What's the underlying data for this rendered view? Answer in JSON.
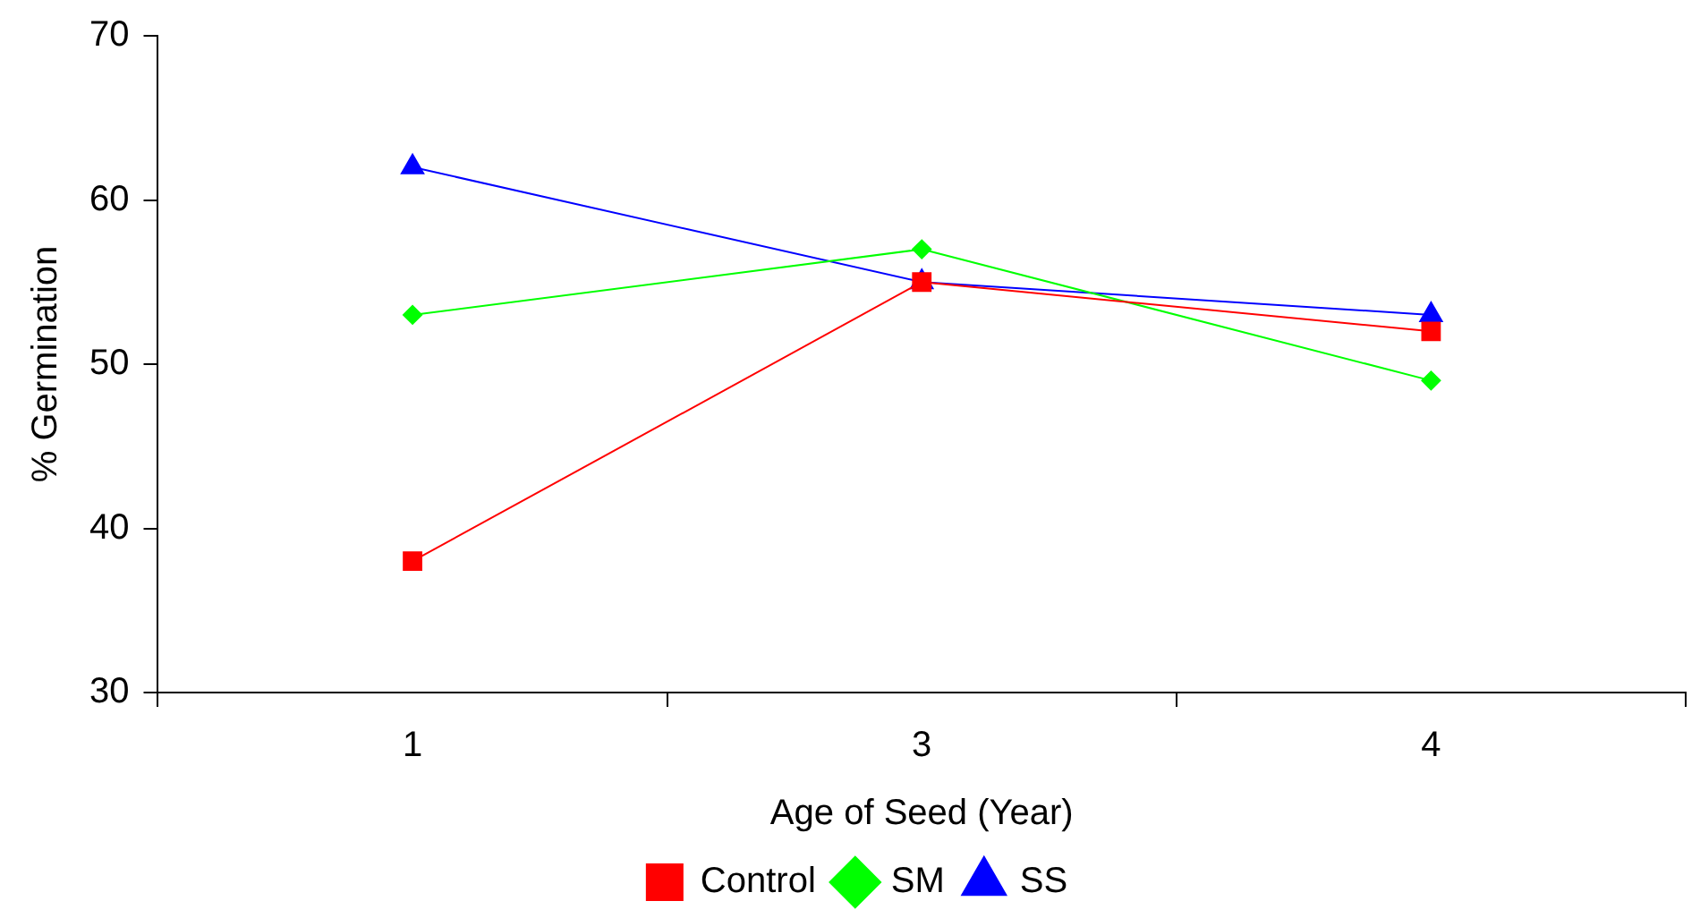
{
  "chart_data": {
    "type": "line",
    "xlabel": "Age of Seed (Year)",
    "ylabel": "% Germination",
    "categories": [
      "1",
      "3",
      "4"
    ],
    "series": [
      {
        "name": "Control",
        "color": "#ff0000",
        "marker": "square",
        "values": [
          38,
          55,
          52
        ]
      },
      {
        "name": "SM",
        "color": "#00ff00",
        "marker": "diamond",
        "values": [
          53,
          57,
          49
        ]
      },
      {
        "name": "SS",
        "color": "#0000ff",
        "marker": "triangle",
        "values": [
          62,
          55,
          53
        ]
      }
    ],
    "ylim": [
      30,
      70
    ],
    "yticks": [
      30,
      40,
      50,
      60,
      70
    ],
    "grid": false,
    "legend": "bottom",
    "line_style": "solid"
  }
}
